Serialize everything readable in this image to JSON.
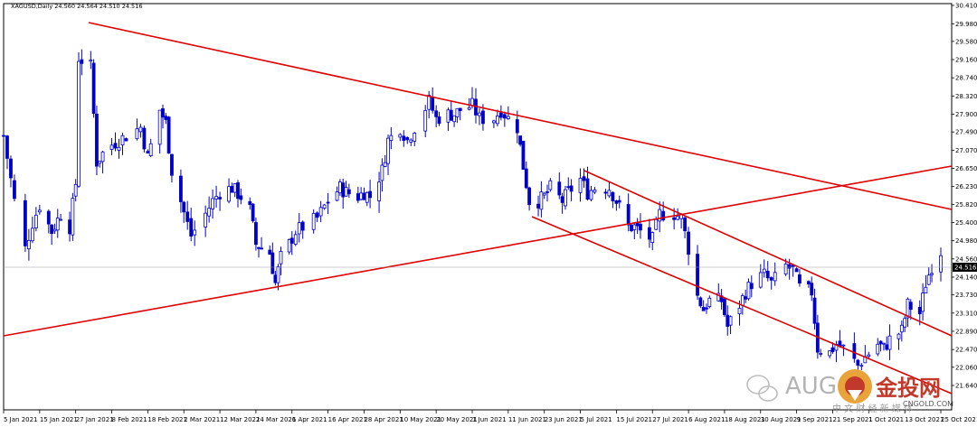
{
  "header": {
    "symbol_line": "XAGUSD,Daily  24.560 24.564 24.510 24.516"
  },
  "current_price_label": "24.516",
  "watermark": {
    "text_left": "AUG",
    "text_brand": "金投网",
    "subtitle": "中 文 财 经 新 媒 体",
    "domain": "CNGOLD.COM"
  },
  "colors": {
    "candle": "#0000c8",
    "trendline": "#e00000",
    "axis": "#000000",
    "background": "#ffffff"
  },
  "chart_data": {
    "type": "candlestick",
    "title": "XAGUSD,Daily",
    "y_ticks": [
      "30.410",
      "29.980",
      "29.580",
      "29.160",
      "28.740",
      "28.320",
      "27.900",
      "27.490",
      "27.070",
      "26.650",
      "26.230",
      "25.820",
      "25.400",
      "24.980",
      "24.560",
      "24.140",
      "23.730",
      "23.310",
      "22.890",
      "22.470",
      "22.060",
      "21.640"
    ],
    "x_ticks": [
      "5 Jan 2021",
      "15 Jan 2021",
      "27 Jan 2021",
      "8 Feb 2021",
      "18 Feb 2021",
      "2 Mar 2021",
      "12 Mar 2021",
      "24 Mar 2021",
      "6 Apr 2021",
      "16 Apr 2021",
      "28 Apr 2021",
      "10 May 2021",
      "20 May 2021",
      "1 Jun 2021",
      "11 Jun 2021",
      "23 Jun 2021",
      "5 Jul 2021",
      "15 Jul 2021",
      "27 Jul 2021",
      "6 Aug 2021",
      "18 Aug 2021",
      "30 Aug 2021",
      "9 Sep 2021",
      "21 Sep 2021",
      "1 Oct 2021",
      "13 Oct 2021",
      "25 Oct 2021"
    ],
    "ylim": [
      21.64,
      30.41
    ],
    "current": 24.516,
    "close_path": [
      [
        "5 Jan 2021",
        27.4
      ],
      [
        "8 Jan 2021",
        25.9
      ],
      [
        "11 Jan 2021",
        24.8
      ],
      [
        "13 Jan 2021",
        25.4
      ],
      [
        "15 Jan 2021",
        25.8
      ],
      [
        "19 Jan 2021",
        25.2
      ],
      [
        "22 Jan 2021",
        25.6
      ],
      [
        "25 Jan 2021",
        25.3
      ],
      [
        "27 Jan 2021",
        26.3
      ],
      [
        "28 Jan 2021",
        29.2
      ],
      [
        "1 Feb 2021",
        29.0
      ],
      [
        "3 Feb 2021",
        26.8
      ],
      [
        "5 Feb 2021",
        27.0
      ],
      [
        "8 Feb 2021",
        27.2
      ],
      [
        "10 Feb 2021",
        27.3
      ],
      [
        "12 Feb 2021",
        27.4
      ],
      [
        "16 Feb 2021",
        27.6
      ],
      [
        "18 Feb 2021",
        26.9
      ],
      [
        "22 Feb 2021",
        28.0
      ],
      [
        "24 Feb 2021",
        27.7
      ],
      [
        "26 Feb 2021",
        26.6
      ],
      [
        "1 Mar 2021",
        25.9
      ],
      [
        "4 Mar 2021",
        25.1
      ],
      [
        "8 Mar 2021",
        25.6
      ],
      [
        "10 Mar 2021",
        25.9
      ],
      [
        "12 Mar 2021",
        26.1
      ],
      [
        "16 Mar 2021",
        26.2
      ],
      [
        "19 Mar 2021",
        26.0
      ],
      [
        "22 Mar 2021",
        25.7
      ],
      [
        "24 Mar 2021",
        24.9
      ],
      [
        "29 Mar 2021",
        24.7
      ],
      [
        "31 Mar 2021",
        24.0
      ],
      [
        "2 Apr 2021",
        24.6
      ],
      [
        "5 Apr 2021",
        24.9
      ],
      [
        "7 Apr 2021",
        25.2
      ],
      [
        "9 Apr 2021",
        25.3
      ],
      [
        "13 Apr 2021",
        25.5
      ],
      [
        "16 Apr 2021",
        25.9
      ],
      [
        "20 Apr 2021",
        26.2
      ],
      [
        "22 Apr 2021",
        26.1
      ],
      [
        "26 Apr 2021",
        26.0
      ],
      [
        "28 Apr 2021",
        26.1
      ],
      [
        "30 Apr 2021",
        26.0
      ],
      [
        "4 May 2021",
        26.6
      ],
      [
        "6 May 2021",
        27.3
      ],
      [
        "10 May 2021",
        27.6
      ],
      [
        "12 May 2021",
        27.3
      ],
      [
        "14 May 2021",
        27.6
      ],
      [
        "18 May 2021",
        28.2
      ],
      [
        "20 May 2021",
        27.8
      ],
      [
        "24 May 2021",
        27.9
      ],
      [
        "26 May 2021",
        27.9
      ],
      [
        "28 May 2021",
        28.0
      ],
      [
        "1 Jun 2021",
        28.1
      ],
      [
        "3 Jun 2021",
        27.8
      ],
      [
        "7 Jun 2021",
        27.8
      ],
      [
        "9 Jun 2021",
        28.0
      ],
      [
        "11 Jun 2021",
        27.8
      ],
      [
        "14 Jun 2021",
        27.6
      ],
      [
        "16 Jun 2021",
        26.7
      ],
      [
        "18 Jun 2021",
        25.9
      ],
      [
        "21 Jun 2021",
        25.9
      ],
      [
        "23 Jun 2021",
        26.0
      ],
      [
        "25 Jun 2021",
        26.2
      ],
      [
        "29 Jun 2021",
        25.9
      ],
      [
        "1 Jul 2021",
        26.1
      ],
      [
        "5 Jul 2021",
        26.4
      ],
      [
        "7 Jul 2021",
        26.1
      ],
      [
        "9 Jul 2021",
        26.2
      ],
      [
        "13 Jul 2021",
        26.2
      ],
      [
        "15 Jul 2021",
        25.9
      ],
      [
        "19 Jul 2021",
        25.3
      ],
      [
        "21 Jul 2021",
        25.3
      ],
      [
        "23 Jul 2021",
        25.2
      ],
      [
        "27 Jul 2021",
        25.0
      ],
      [
        "29 Jul 2021",
        25.6
      ],
      [
        "2 Aug 2021",
        25.6
      ],
      [
        "4 Aug 2021",
        25.5
      ],
      [
        "6 Aug 2021",
        24.8
      ],
      [
        "9 Aug 2021",
        23.7
      ],
      [
        "11 Aug 2021",
        23.4
      ],
      [
        "13 Aug 2021",
        23.6
      ],
      [
        "17 Aug 2021",
        23.6
      ],
      [
        "19 Aug 2021",
        23.0
      ],
      [
        "23 Aug 2021",
        23.5
      ],
      [
        "25 Aug 2021",
        23.8
      ],
      [
        "27 Aug 2021",
        24.0
      ],
      [
        "31 Aug 2021",
        24.2
      ],
      [
        "2 Sep 2021",
        24.0
      ],
      [
        "6 Sep 2021",
        24.4
      ],
      [
        "8 Sep 2021",
        24.3
      ],
      [
        "10 Sep 2021",
        23.9
      ],
      [
        "14 Sep 2021",
        23.8
      ],
      [
        "16 Sep 2021",
        22.5
      ],
      [
        "20 Sep 2021",
        22.4
      ],
      [
        "22 Sep 2021",
        22.6
      ],
      [
        "24 Sep 2021",
        22.5
      ],
      [
        "28 Sep 2021",
        22.1
      ],
      [
        "30 Sep 2021",
        22.3
      ],
      [
        "4 Oct 2021",
        22.6
      ],
      [
        "6 Oct 2021",
        22.5
      ],
      [
        "8 Oct 2021",
        22.7
      ],
      [
        "12 Oct 2021",
        22.9
      ],
      [
        "14 Oct 2021",
        23.5
      ],
      [
        "18 Oct 2021",
        23.3
      ],
      [
        "20 Oct 2021",
        24.0
      ],
      [
        "22 Oct 2021",
        24.4
      ],
      [
        "26 Oct 2021",
        24.5
      ],
      [
        "28 Oct 2021",
        24.5
      ]
    ]
  }
}
